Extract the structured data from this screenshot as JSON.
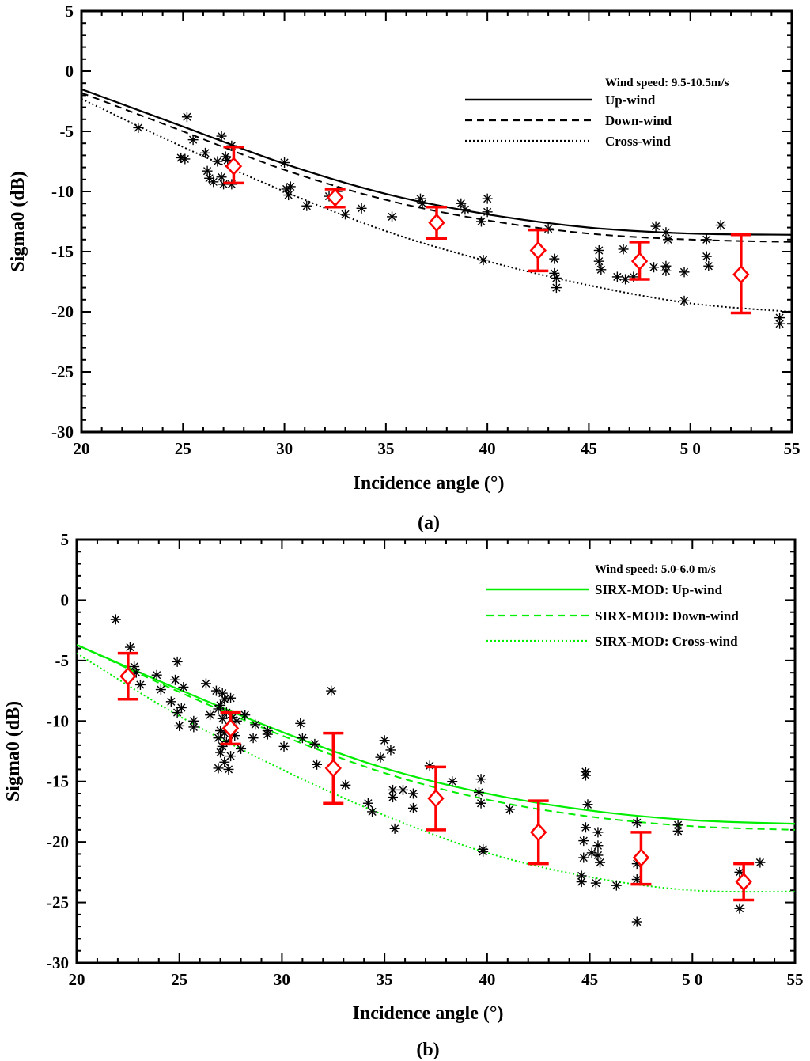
{
  "chart_data": [
    {
      "type": "scatter",
      "panel_label": "(a)",
      "xlabel": "Incidence angle (°)",
      "ylabel": "Sigma0 (dB)",
      "xlim": [
        20,
        55
      ],
      "ylim": [
        -30,
        5
      ],
      "x_ticks": [
        20,
        25,
        30,
        35,
        40,
        45,
        50,
        55
      ],
      "x_tick_labels": [
        "20",
        "25",
        "30",
        "35",
        "40",
        "45",
        "5 0",
        "55"
      ],
      "y_ticks": [
        5,
        0,
        -5,
        -10,
        -15,
        -20,
        -25,
        -30
      ],
      "y_tick_labels": [
        "5",
        "0",
        "-5",
        "-10",
        "-15",
        "-20",
        "-25",
        "-30"
      ],
      "legend_title": "Wind speed: 9.5-10.5m/s",
      "legend_placement": "top-right",
      "grid": false,
      "curves": [
        {
          "name": "Up-wind",
          "style": "solid",
          "color": "#000000",
          "x": [
            20,
            25,
            30,
            35,
            40,
            45,
            50,
            55
          ],
          "y": [
            -1.5,
            -4.6,
            -7.7,
            -10.2,
            -11.9,
            -13.0,
            -13.5,
            -13.6
          ]
        },
        {
          "name": "Down-wind",
          "style": "dashed",
          "color": "#000000",
          "x": [
            20,
            25,
            30,
            35,
            40,
            45,
            50,
            55
          ],
          "y": [
            -1.8,
            -5.0,
            -8.2,
            -10.7,
            -12.4,
            -13.5,
            -14.0,
            -14.2
          ]
        },
        {
          "name": "Cross-wind",
          "style": "dotted",
          "color": "#000000",
          "x": [
            20,
            25,
            30,
            35,
            40,
            45,
            50,
            55
          ],
          "y": [
            -2.3,
            -6.3,
            -10.0,
            -13.3,
            -15.8,
            -17.8,
            -19.3,
            -20.0
          ]
        }
      ],
      "scatter": {
        "marker": "asterisk",
        "color": "#000000",
        "points": [
          [
            22.8,
            -4.7
          ],
          [
            24.9,
            -7.2
          ],
          [
            25.1,
            -7.3
          ],
          [
            25.2,
            -3.8
          ],
          [
            25.5,
            -5.7
          ],
          [
            26.1,
            -6.8
          ],
          [
            26.2,
            -8.3
          ],
          [
            26.3,
            -8.9
          ],
          [
            26.5,
            -9.2
          ],
          [
            26.7,
            -7.5
          ],
          [
            26.9,
            -5.4
          ],
          [
            26.9,
            -8.8
          ],
          [
            27.0,
            -9.4
          ],
          [
            27.1,
            -7.1
          ],
          [
            27.2,
            -7.4
          ],
          [
            27.4,
            -6.2
          ],
          [
            27.4,
            -9.4
          ],
          [
            30.0,
            -7.6
          ],
          [
            30.1,
            -9.8
          ],
          [
            30.2,
            -10.3
          ],
          [
            30.3,
            -9.6
          ],
          [
            31.1,
            -11.2
          ],
          [
            32.2,
            -10.4
          ],
          [
            32.6,
            -10.0
          ],
          [
            33.0,
            -11.9
          ],
          [
            33.8,
            -11.4
          ],
          [
            35.3,
            -12.1
          ],
          [
            36.7,
            -10.6
          ],
          [
            36.8,
            -11.0
          ],
          [
            38.7,
            -11.0
          ],
          [
            38.9,
            -11.5
          ],
          [
            39.7,
            -12.5
          ],
          [
            39.8,
            -15.7
          ],
          [
            40.0,
            -10.6
          ],
          [
            40.0,
            -11.7
          ],
          [
            43.0,
            -13.1
          ],
          [
            43.3,
            -15.6
          ],
          [
            43.3,
            -16.8
          ],
          [
            43.4,
            -17.2
          ],
          [
            43.4,
            -18.0
          ],
          [
            45.5,
            -14.9
          ],
          [
            45.5,
            -15.8
          ],
          [
            45.6,
            -16.5
          ],
          [
            46.4,
            -17.1
          ],
          [
            46.7,
            -14.8
          ],
          [
            46.8,
            -17.3
          ],
          [
            47.2,
            -17.1
          ],
          [
            48.2,
            -16.3
          ],
          [
            48.3,
            -12.9
          ],
          [
            48.8,
            -13.4
          ],
          [
            48.8,
            -16.2
          ],
          [
            48.8,
            -16.6
          ],
          [
            48.9,
            -14.0
          ],
          [
            49.7,
            -16.7
          ],
          [
            49.7,
            -19.1
          ],
          [
            50.8,
            -14.0
          ],
          [
            50.8,
            -15.4
          ],
          [
            50.9,
            -16.2
          ],
          [
            51.5,
            -12.8
          ],
          [
            54.4,
            -20.5
          ],
          [
            54.4,
            -21.0
          ]
        ]
      },
      "binned_means": {
        "color": "#ff0000",
        "marker": "diamond",
        "x": [
          27.5,
          32.5,
          37.5,
          42.5,
          47.5,
          52.5
        ],
        "mean": [
          -7.9,
          -10.5,
          -12.6,
          -14.9,
          -15.8,
          -16.9
        ],
        "lower": [
          -9.3,
          -11.3,
          -13.9,
          -16.6,
          -17.3,
          -20.1
        ],
        "upper": [
          -6.3,
          -9.8,
          -11.3,
          -13.2,
          -14.2,
          -13.6
        ]
      }
    },
    {
      "type": "scatter",
      "panel_label": "(b)",
      "xlabel": "Incidence angle (°)",
      "ylabel": "Sigma0 (dB)",
      "xlim": [
        20,
        55
      ],
      "ylim": [
        -30,
        5
      ],
      "x_ticks": [
        20,
        25,
        30,
        35,
        40,
        45,
        50,
        55
      ],
      "x_tick_labels": [
        "20",
        "25",
        "30",
        "35",
        "40",
        "45",
        "5 0",
        "55"
      ],
      "y_ticks": [
        5,
        0,
        -5,
        -10,
        -15,
        -20,
        -25,
        -30
      ],
      "y_tick_labels": [
        "5",
        "0",
        "-5",
        "-10",
        "-15",
        "-20",
        "-25",
        "-30"
      ],
      "legend_title": "Wind speed: 5.0-6.0 m/s",
      "legend_placement": "top-right",
      "grid": false,
      "curves": [
        {
          "name": "SIRX-MOD: Up-wind",
          "style": "solid",
          "color": "#00ee00",
          "x": [
            20,
            25,
            30,
            35,
            40,
            45,
            50,
            55
          ],
          "y": [
            -3.7,
            -7.4,
            -10.9,
            -13.9,
            -16.0,
            -17.4,
            -18.2,
            -18.5
          ]
        },
        {
          "name": "SIRX-MOD: Down-wind",
          "style": "dashed",
          "color": "#00ee00",
          "x": [
            20,
            25,
            30,
            35,
            40,
            45,
            50,
            55
          ],
          "y": [
            -3.7,
            -7.6,
            -11.2,
            -14.3,
            -16.5,
            -17.9,
            -18.7,
            -19.0
          ]
        },
        {
          "name": "SIRX-MOD: Cross-wind",
          "style": "dotted",
          "color": "#00ee00",
          "x": [
            20,
            25,
            30,
            35,
            40,
            45,
            50,
            55
          ],
          "y": [
            -4.4,
            -9.6,
            -14.0,
            -17.8,
            -20.9,
            -22.9,
            -24.0,
            -24.1
          ]
        }
      ],
      "scatter": {
        "marker": "asterisk",
        "color": "#000000",
        "points": [
          [
            21.9,
            -1.6
          ],
          [
            22.6,
            -3.9
          ],
          [
            22.8,
            -5.5
          ],
          [
            22.9,
            -6.0
          ],
          [
            23.1,
            -7.0
          ],
          [
            23.9,
            -6.2
          ],
          [
            24.1,
            -7.4
          ],
          [
            24.6,
            -8.4
          ],
          [
            24.8,
            -6.6
          ],
          [
            24.9,
            -5.1
          ],
          [
            24.9,
            -9.3
          ],
          [
            25.0,
            -10.4
          ],
          [
            25.1,
            -8.9
          ],
          [
            25.2,
            -7.2
          ],
          [
            25.7,
            -10.0
          ],
          [
            25.7,
            -10.5
          ],
          [
            26.3,
            -6.9
          ],
          [
            26.5,
            -9.5
          ],
          [
            26.8,
            -7.5
          ],
          [
            26.9,
            -9.0
          ],
          [
            26.9,
            -11.4
          ],
          [
            26.9,
            -13.9
          ],
          [
            27.0,
            -8.7
          ],
          [
            27.0,
            -10.8
          ],
          [
            27.0,
            -12.6
          ],
          [
            27.1,
            -7.7
          ],
          [
            27.1,
            -9.8
          ],
          [
            27.1,
            -12.1
          ],
          [
            27.2,
            -8.2
          ],
          [
            27.2,
            -11.0
          ],
          [
            27.2,
            -13.4
          ],
          [
            27.3,
            -9.3
          ],
          [
            27.3,
            -11.7
          ],
          [
            27.4,
            -10.4
          ],
          [
            27.4,
            -14.0
          ],
          [
            27.5,
            -8.1
          ],
          [
            27.5,
            -12.9
          ],
          [
            27.6,
            -9.7
          ],
          [
            27.7,
            -11.2
          ],
          [
            27.8,
            -10.0
          ],
          [
            28.0,
            -12.3
          ],
          [
            28.2,
            -9.5
          ],
          [
            28.6,
            -11.4
          ],
          [
            28.7,
            -10.3
          ],
          [
            29.3,
            -11.1
          ],
          [
            29.3,
            -10.8
          ],
          [
            30.1,
            -12.1
          ],
          [
            30.9,
            -10.2
          ],
          [
            31.0,
            -11.4
          ],
          [
            31.6,
            -11.9
          ],
          [
            31.7,
            -13.6
          ],
          [
            32.4,
            -7.5
          ],
          [
            33.1,
            -15.3
          ],
          [
            34.2,
            -16.8
          ],
          [
            34.4,
            -17.5
          ],
          [
            34.8,
            -13.0
          ],
          [
            35.0,
            -11.6
          ],
          [
            35.3,
            -12.4
          ],
          [
            35.4,
            -15.7
          ],
          [
            35.4,
            -16.3
          ],
          [
            35.5,
            -18.9
          ],
          [
            35.9,
            -15.7
          ],
          [
            36.4,
            -16.0
          ],
          [
            36.4,
            -17.2
          ],
          [
            37.2,
            -13.7
          ],
          [
            38.3,
            -15.0
          ],
          [
            39.6,
            -15.9
          ],
          [
            39.7,
            -14.8
          ],
          [
            39.7,
            -16.8
          ],
          [
            39.8,
            -20.6
          ],
          [
            39.8,
            -20.8
          ],
          [
            41.1,
            -17.3
          ],
          [
            44.6,
            -22.8
          ],
          [
            44.6,
            -23.3
          ],
          [
            44.7,
            -19.9
          ],
          [
            44.7,
            -21.3
          ],
          [
            44.8,
            -14.5
          ],
          [
            44.8,
            -18.8
          ],
          [
            44.8,
            -14.2
          ],
          [
            44.9,
            -16.9
          ],
          [
            45.1,
            -20.9
          ],
          [
            45.3,
            -23.4
          ],
          [
            45.4,
            -19.2
          ],
          [
            45.4,
            -20.3
          ],
          [
            45.4,
            -21.1
          ],
          [
            45.5,
            -21.7
          ],
          [
            46.3,
            -23.6
          ],
          [
            47.3,
            -18.4
          ],
          [
            47.3,
            -21.8
          ],
          [
            47.3,
            -23.1
          ],
          [
            47.3,
            -26.6
          ],
          [
            49.3,
            -18.6
          ],
          [
            49.3,
            -19.1
          ],
          [
            52.3,
            -25.5
          ],
          [
            52.3,
            -22.5
          ],
          [
            53.3,
            -21.7
          ]
        ]
      },
      "binned_means": {
        "color": "#ff0000",
        "marker": "diamond",
        "x": [
          22.5,
          27.5,
          32.5,
          37.5,
          42.5,
          47.5,
          52.5
        ],
        "mean": [
          -6.3,
          -10.6,
          -13.9,
          -16.4,
          -19.2,
          -21.3,
          -23.3
        ],
        "lower": [
          -8.2,
          -11.9,
          -16.8,
          -19.0,
          -21.8,
          -23.5,
          -24.8
        ],
        "upper": [
          -4.4,
          -9.3,
          -11.0,
          -13.8,
          -16.6,
          -19.2,
          -21.8
        ]
      }
    }
  ]
}
